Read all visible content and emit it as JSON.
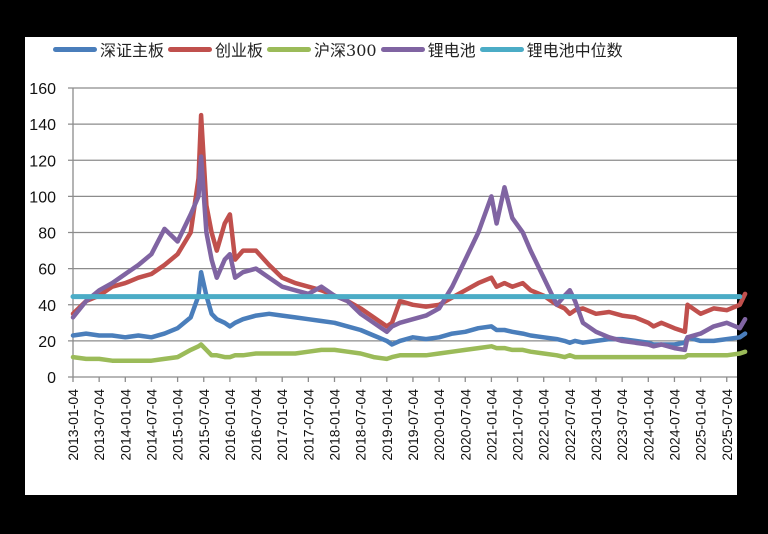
{
  "chart_data": {
    "type": "line",
    "title": "",
    "xlabel": "",
    "ylabel": "",
    "ylim": [
      0,
      160
    ],
    "yticks": [
      0,
      20,
      40,
      60,
      80,
      100,
      120,
      140,
      160
    ],
    "grid": "horizontal",
    "legend_position": "top",
    "x_tick_labels": [
      "2013-01-04",
      "2013-07-04",
      "2014-01-04",
      "2014-07-04",
      "2015-01-04",
      "2015-07-04",
      "2016-01-04",
      "2016-07-04",
      "2017-01-04",
      "2017-07-04",
      "2018-01-04",
      "2018-07-04",
      "2019-01-04",
      "2019-07-04",
      "2020-01-04",
      "2020-07-04",
      "2021-01-04",
      "2021-07-04",
      "2022-01-04",
      "2022-07-04",
      "2023-01-04",
      "2023-07-04",
      "2024-01-04",
      "2024-07-04",
      "2025-01-04",
      "2025-07-04"
    ],
    "x": [
      2013.0,
      2013.25,
      2013.5,
      2013.75,
      2014.0,
      2014.25,
      2014.5,
      2014.75,
      2015.0,
      2015.25,
      2015.4,
      2015.45,
      2015.55,
      2015.65,
      2015.75,
      2015.9,
      2016.0,
      2016.1,
      2016.25,
      2016.5,
      2016.75,
      2017.0,
      2017.25,
      2017.5,
      2017.75,
      2018.0,
      2018.25,
      2018.5,
      2018.75,
      2019.0,
      2019.1,
      2019.25,
      2019.5,
      2019.75,
      2020.0,
      2020.25,
      2020.5,
      2020.75,
      2021.0,
      2021.1,
      2021.25,
      2021.4,
      2021.6,
      2021.75,
      2022.0,
      2022.25,
      2022.4,
      2022.5,
      2022.6,
      2022.75,
      2023.0,
      2023.25,
      2023.5,
      2023.75,
      2024.0,
      2024.1,
      2024.25,
      2024.5,
      2024.7,
      2024.75,
      2025.0,
      2025.25,
      2025.5,
      2025.75,
      2025.85
    ],
    "series": [
      {
        "name": "深证主板",
        "color": "#4a7ebb",
        "values": [
          23,
          24,
          23,
          23,
          22,
          23,
          22,
          24,
          27,
          33,
          45,
          58,
          45,
          35,
          32,
          30,
          28,
          30,
          32,
          34,
          35,
          34,
          33,
          32,
          31,
          30,
          28,
          26,
          23,
          20,
          18,
          20,
          22,
          21,
          22,
          24,
          25,
          27,
          28,
          26,
          26,
          25,
          24,
          23,
          22,
          21,
          20,
          19,
          20,
          19,
          20,
          21,
          21,
          20,
          19,
          18,
          18,
          18,
          19,
          22,
          20,
          20,
          21,
          22,
          24
        ]
      },
      {
        "name": "创业板",
        "color": "#c0504d",
        "values": [
          35,
          42,
          45,
          50,
          52,
          55,
          57,
          62,
          68,
          80,
          110,
          145,
          95,
          80,
          70,
          85,
          90,
          65,
          70,
          70,
          62,
          55,
          52,
          50,
          48,
          45,
          42,
          38,
          33,
          28,
          30,
          42,
          40,
          39,
          40,
          44,
          48,
          52,
          55,
          50,
          52,
          50,
          52,
          48,
          45,
          40,
          38,
          35,
          37,
          38,
          35,
          36,
          34,
          33,
          30,
          28,
          30,
          27,
          25,
          40,
          35,
          38,
          37,
          40,
          46
        ]
      },
      {
        "name": "沪深300",
        "color": "#9bbb59",
        "values": [
          11,
          10,
          10,
          9,
          9,
          9,
          9,
          10,
          11,
          15,
          17,
          18,
          15,
          12,
          12,
          11,
          11,
          12,
          12,
          13,
          13,
          13,
          13,
          14,
          15,
          15,
          14,
          13,
          11,
          10,
          11,
          12,
          12,
          12,
          13,
          14,
          15,
          16,
          17,
          16,
          16,
          15,
          15,
          14,
          13,
          12,
          11,
          12,
          11,
          11,
          11,
          11,
          11,
          11,
          11,
          11,
          11,
          11,
          11,
          12,
          12,
          12,
          12,
          13,
          14
        ]
      },
      {
        "name": "锂电池",
        "color": "#8064a2",
        "values": [
          33,
          42,
          48,
          52,
          57,
          62,
          68,
          82,
          75,
          90,
          100,
          122,
          80,
          65,
          55,
          65,
          68,
          55,
          58,
          60,
          55,
          50,
          48,
          46,
          50,
          45,
          42,
          35,
          30,
          25,
          28,
          30,
          32,
          34,
          38,
          50,
          65,
          80,
          100,
          85,
          105,
          88,
          80,
          70,
          55,
          40,
          45,
          48,
          42,
          30,
          25,
          22,
          20,
          19,
          18,
          17,
          18,
          16,
          15,
          22,
          24,
          28,
          30,
          27,
          32
        ]
      },
      {
        "name": "锂电池中位数",
        "color": "#4bacc6",
        "values": [
          44.5,
          44.5,
          44.5,
          44.5,
          44.5,
          44.5,
          44.5,
          44.5,
          44.5,
          44.5,
          44.5,
          44.5,
          44.5,
          44.5,
          44.5,
          44.5,
          44.5,
          44.5,
          44.5,
          44.5,
          44.5,
          44.5,
          44.5,
          44.5,
          44.5,
          44.5,
          44.5,
          44.5,
          44.5,
          44.5,
          44.5,
          44.5,
          44.5,
          44.5,
          44.5,
          44.5,
          44.5,
          44.5,
          44.5,
          44.5,
          44.5,
          44.5,
          44.5,
          44.5,
          44.5,
          44.5,
          44.5,
          44.5,
          44.5,
          44.5,
          44.5,
          44.5,
          44.5,
          44.5,
          44.5,
          44.5,
          44.5,
          44.5,
          44.5,
          44.5,
          44.5,
          44.5,
          44.5,
          44.5,
          44.5
        ]
      }
    ]
  },
  "legend": {
    "items": [
      {
        "label": "深证主板",
        "color": "#4a7ebb"
      },
      {
        "label": "创业板",
        "color": "#c0504d"
      },
      {
        "label": "沪深300",
        "color": "#9bbb59"
      },
      {
        "label": "锂电池",
        "color": "#8064a2"
      },
      {
        "label": "锂电池中位数",
        "color": "#4bacc6"
      }
    ]
  }
}
